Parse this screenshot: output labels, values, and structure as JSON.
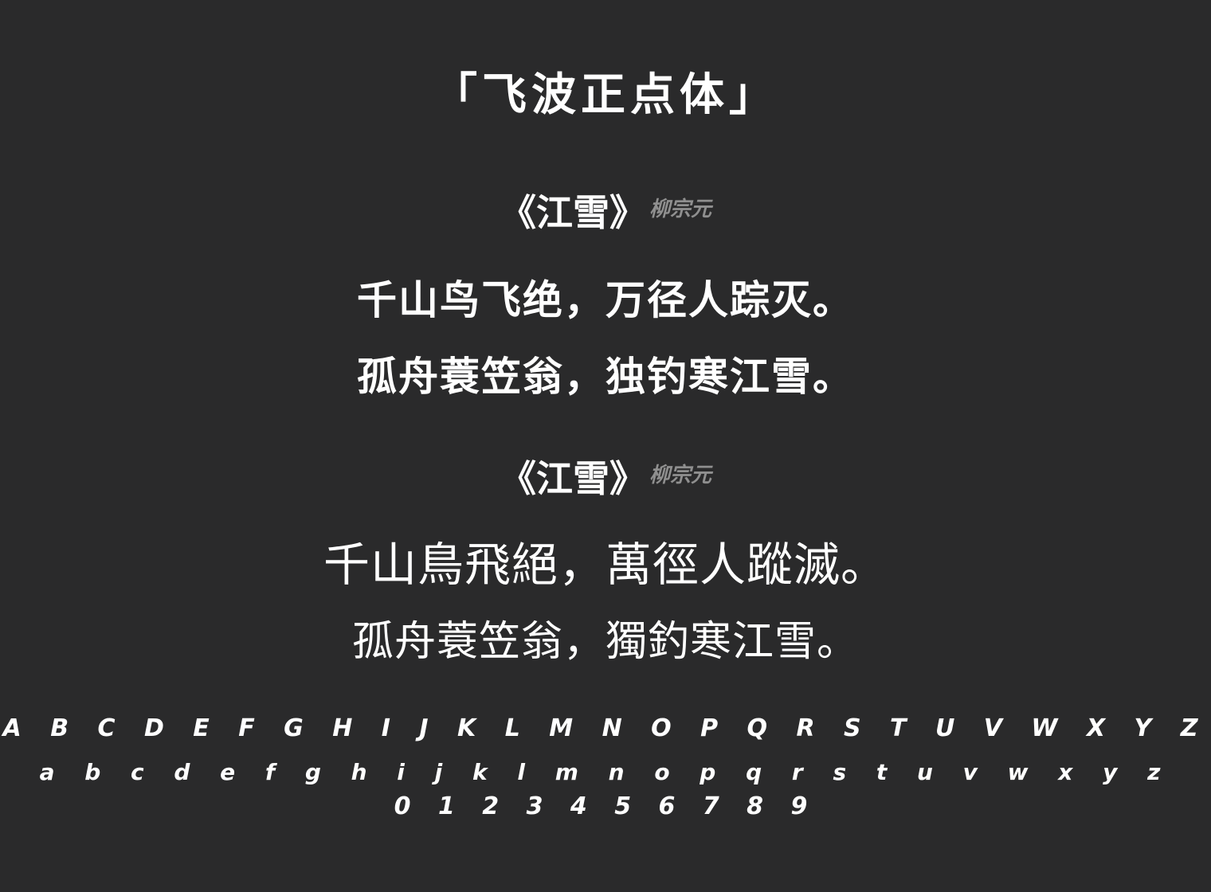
{
  "title": "「飞波正点体」",
  "poem_simplified": {
    "heading": "《江雪》",
    "author": "柳宗元",
    "line1": "千山鸟飞绝，万径人踪灭。",
    "line2": "孤舟蓑笠翁，独钓寒江雪。"
  },
  "poem_traditional": {
    "heading": "《江雪》",
    "author": "柳宗元",
    "line1": "千山鳥飛絕，萬徑人蹤滅。",
    "line2": "孤舟蓑笠翁，獨釣寒江雪。"
  },
  "alphabet": {
    "uppercase": "A B C D E F G H I J K L M N O P Q R S T U V W X Y Z",
    "lowercase": "a b c d e f g h i j k l m n o p q r s t u v w x y z",
    "digits": "0 1 2 3 4 5 6 7 8 9"
  },
  "colors": {
    "background": "#2a2a2b",
    "text": "#ffffff",
    "author": "#8f8f8f"
  }
}
